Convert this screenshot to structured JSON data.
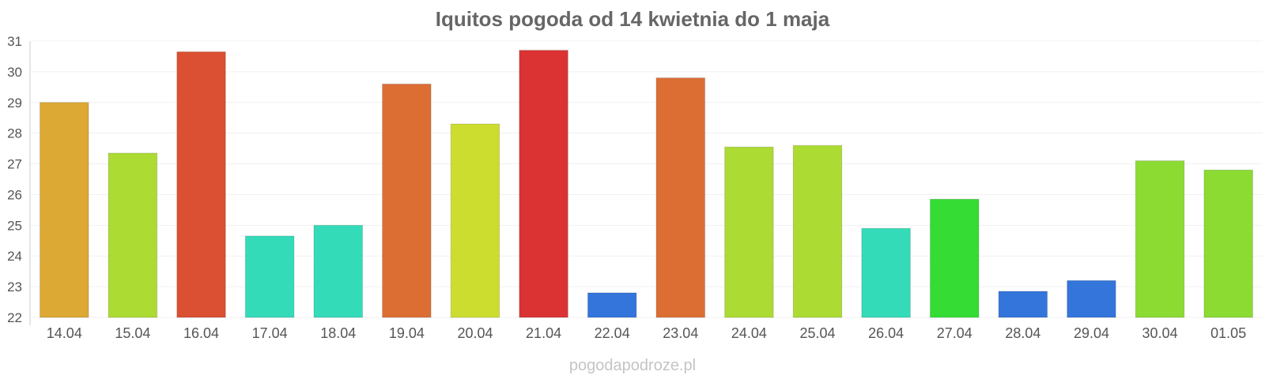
{
  "chart_data": {
    "type": "bar",
    "title": "Iquitos pogoda od 14 kwietnia do 1 maja",
    "xlabel": "",
    "ylabel": "",
    "ylim": [
      22,
      31
    ],
    "yticks": [
      "31",
      "30",
      "29",
      "28",
      "27",
      "26",
      "25",
      "24",
      "23",
      "22"
    ],
    "grid": true,
    "legend": "none",
    "categories": [
      "14.04",
      "15.04",
      "16.04",
      "17.04",
      "18.04",
      "19.04",
      "20.04",
      "21.04",
      "22.04",
      "23.04",
      "24.04",
      "25.04",
      "26.04",
      "27.04",
      "28.04",
      "29.04",
      "30.04",
      "01.05"
    ],
    "values": [
      29.0,
      27.35,
      30.65,
      24.65,
      25.0,
      29.6,
      28.3,
      30.7,
      22.8,
      29.8,
      27.55,
      27.6,
      24.9,
      25.85,
      22.85,
      23.2,
      27.1,
      26.8
    ],
    "colors": [
      "#dca934",
      "#acdb33",
      "#db5032",
      "#34dbb8",
      "#34dbb8",
      "#dc6e34",
      "#cddd30",
      "#db3334",
      "#3375db",
      "#dc6e34",
      "#acdb33",
      "#acdb33",
      "#34dbb8",
      "#34dc34",
      "#3375db",
      "#3375db",
      "#8bdb33",
      "#8bdb33"
    ]
  },
  "footer": {
    "source": "pogodapodroze.pl"
  }
}
